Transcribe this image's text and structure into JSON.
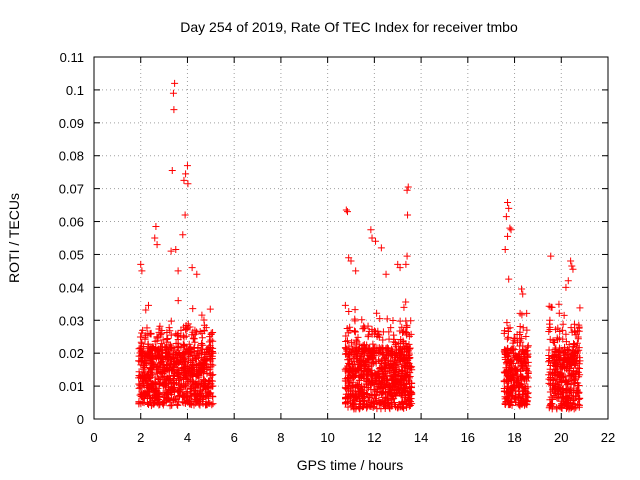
{
  "chart_data": {
    "type": "scatter",
    "title": "Day 254 of 2019, Rate Of TEC Index for receiver tmbo",
    "xlabel": "GPS time / hours",
    "ylabel": "ROTI / TECUs",
    "xlim": [
      0,
      22
    ],
    "ylim": [
      0,
      0.11
    ],
    "x_ticks": [
      0,
      2,
      4,
      6,
      8,
      10,
      12,
      14,
      16,
      18,
      20,
      22
    ],
    "x_tick_labels": [
      "0",
      "2",
      "4",
      "6",
      "8",
      "10",
      "12",
      "14",
      "16",
      "18",
      "20",
      "22"
    ],
    "y_ticks": [
      0,
      0.01,
      0.02,
      0.03,
      0.04,
      0.05,
      0.06,
      0.07,
      0.08,
      0.09,
      0.1,
      0.11
    ],
    "y_tick_labels": [
      "0",
      "0.01",
      "0.02",
      "0.03",
      "0.04",
      "0.05",
      "0.06",
      "0.07",
      "0.08",
      "0.09",
      "0.1",
      "0.11"
    ],
    "grid": true,
    "marker": "+",
    "color": "#ff0000",
    "series": [
      {
        "name": "ROTI",
        "points": [
          [
            3.45,
            0.102
          ],
          [
            3.4,
            0.099
          ],
          [
            3.42,
            0.094
          ],
          [
            3.35,
            0.0755
          ],
          [
            4.0,
            0.077
          ],
          [
            3.92,
            0.0745
          ],
          [
            3.85,
            0.0725
          ],
          [
            4.02,
            0.0715
          ],
          [
            3.9,
            0.062
          ],
          [
            2.65,
            0.0585
          ],
          [
            2.6,
            0.055
          ],
          [
            2.7,
            0.053
          ],
          [
            3.8,
            0.056
          ],
          [
            3.5,
            0.0515
          ],
          [
            3.3,
            0.051
          ],
          [
            2.0,
            0.047
          ],
          [
            2.05,
            0.045
          ],
          [
            3.6,
            0.045
          ],
          [
            4.2,
            0.046
          ],
          [
            4.4,
            0.044
          ],
          [
            10.8,
            0.0635
          ],
          [
            10.85,
            0.063
          ],
          [
            10.9,
            0.049
          ],
          [
            11.0,
            0.048
          ],
          [
            11.85,
            0.0575
          ],
          [
            11.9,
            0.055
          ],
          [
            12.05,
            0.054
          ],
          [
            12.3,
            0.052
          ],
          [
            11.2,
            0.045
          ],
          [
            12.5,
            0.044
          ],
          [
            13.45,
            0.0705
          ],
          [
            13.4,
            0.0695
          ],
          [
            13.42,
            0.062
          ],
          [
            13.4,
            0.0495
          ],
          [
            13.35,
            0.047
          ],
          [
            13.0,
            0.047
          ],
          [
            13.1,
            0.046
          ],
          [
            17.7,
            0.0658
          ],
          [
            17.75,
            0.064
          ],
          [
            17.65,
            0.0615
          ],
          [
            17.8,
            0.058
          ],
          [
            17.85,
            0.0575
          ],
          [
            17.7,
            0.0555
          ],
          [
            17.6,
            0.0515
          ],
          [
            17.75,
            0.0425
          ],
          [
            18.3,
            0.0395
          ],
          [
            18.35,
            0.038
          ],
          [
            19.55,
            0.0495
          ],
          [
            20.4,
            0.048
          ],
          [
            20.45,
            0.0465
          ],
          [
            20.5,
            0.0455
          ],
          [
            20.3,
            0.042
          ],
          [
            20.2,
            0.04
          ]
        ]
      }
    ],
    "clusters": [
      {
        "x_start": 1.9,
        "x_end": 5.1,
        "y_min": 0.004,
        "y_max": 0.036,
        "count": 900
      },
      {
        "x_start": 10.75,
        "x_end": 13.6,
        "y_min": 0.003,
        "y_max": 0.036,
        "count": 850
      },
      {
        "x_start": 17.55,
        "x_end": 18.6,
        "y_min": 0.004,
        "y_max": 0.033,
        "count": 300
      },
      {
        "x_start": 19.45,
        "x_end": 20.8,
        "y_min": 0.003,
        "y_max": 0.036,
        "count": 380
      }
    ]
  }
}
